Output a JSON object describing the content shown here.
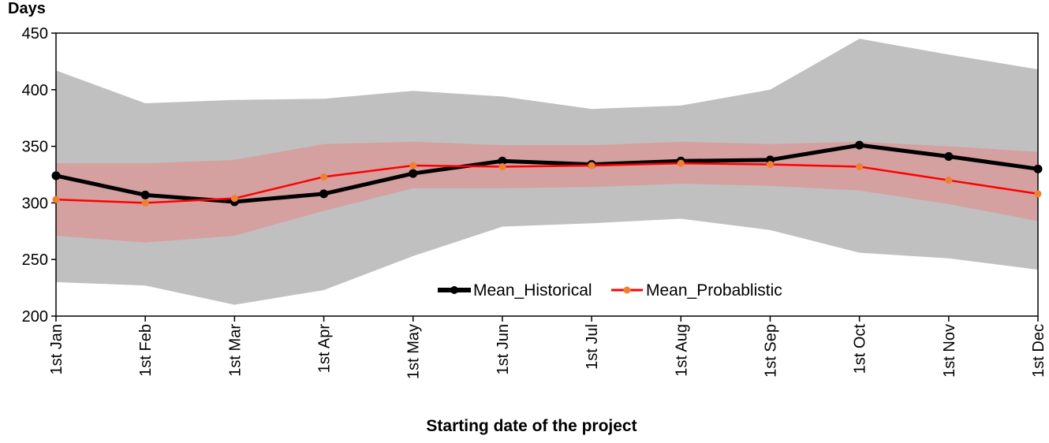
{
  "chart_data": {
    "type": "line",
    "ylabel": "Days",
    "xlabel": "Starting date of the project",
    "ylim": [
      200,
      450
    ],
    "yticks": [
      200,
      250,
      300,
      350,
      400,
      450
    ],
    "categories": [
      "1st Jan",
      "1st Feb",
      "1st Mar",
      "1st Apr",
      "1st May",
      "1st Jun",
      "1st Jul",
      "1st Aug",
      "1st Sep",
      "1st Oct",
      "1st Nov",
      "1st Dec"
    ],
    "bands": [
      {
        "kind": "outer-range",
        "color": "#c0c0c0",
        "upper": [
          417,
          388,
          391,
          392,
          399,
          394,
          383,
          386,
          400,
          445,
          431,
          418
        ],
        "lower": [
          230,
          227,
          210,
          223,
          253,
          279,
          282,
          286,
          276,
          256,
          251,
          241
        ]
      },
      {
        "kind": "inner-range",
        "color": "#d4a0a0",
        "upper": [
          335,
          335,
          338,
          352,
          354,
          351,
          351,
          354,
          352,
          354,
          350,
          345
        ],
        "lower": [
          271,
          265,
          271,
          293,
          313,
          313,
          314,
          317,
          315,
          311,
          299,
          284
        ]
      }
    ],
    "series": [
      {
        "name": "Mean_Historical",
        "color": "#000000",
        "marker_color": "#000000",
        "values": [
          324,
          307,
          301,
          308,
          326,
          337,
          334,
          337,
          338,
          351,
          341,
          330
        ]
      },
      {
        "name": "Mean_Probablistic",
        "color": "#ff0000",
        "marker_color": "#f08030",
        "values": [
          303,
          300,
          304,
          323,
          333,
          332,
          333,
          335,
          334,
          332,
          320,
          308
        ]
      }
    ],
    "grid": false,
    "legend": "bottom-center inside plot"
  }
}
